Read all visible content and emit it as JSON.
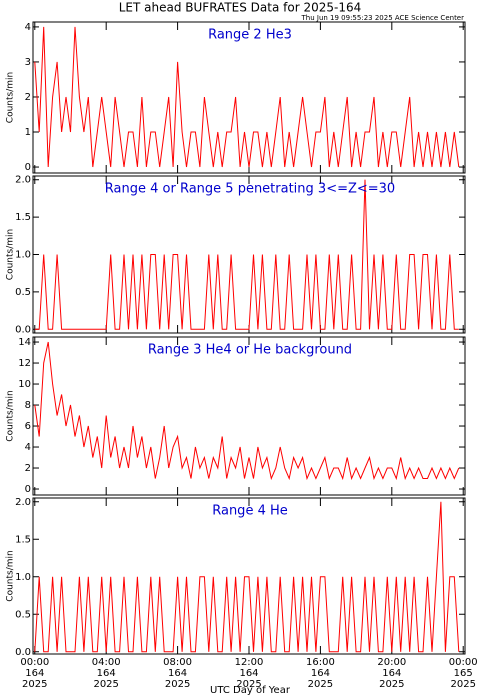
{
  "title": "LET ahead BUFRATES Data for 2025-164",
  "subtitle": "Thu Jun 19 09:55:23 2025 ACE Science Center",
  "x_label": "UTC Day of Year",
  "chart_data": [
    {
      "type": "line",
      "title": "Range 2 He3",
      "y_label": "Counts/min",
      "color": "#ff0000",
      "xlim": [
        -0.1,
        24.1
      ],
      "ylim": [
        -0.17,
        4.14
      ],
      "yticks": [
        0,
        1,
        2,
        3,
        4
      ],
      "x": [
        0,
        0.25,
        0.5,
        0.75,
        1,
        1.25,
        1.5,
        1.75,
        2,
        2.25,
        2.5,
        2.75,
        3,
        3.25,
        3.5,
        3.75,
        4,
        4.25,
        4.5,
        4.75,
        5,
        5.25,
        5.5,
        5.75,
        6,
        6.25,
        6.5,
        6.75,
        7,
        7.25,
        7.5,
        7.75,
        8,
        8.25,
        8.5,
        8.75,
        9,
        9.25,
        9.5,
        9.75,
        10,
        10.25,
        10.5,
        10.75,
        11,
        11.25,
        11.5,
        11.75,
        12,
        12.25,
        12.5,
        12.75,
        13,
        13.25,
        13.5,
        13.75,
        14,
        14.25,
        14.5,
        14.75,
        15,
        15.25,
        15.5,
        15.75,
        16,
        16.25,
        16.5,
        16.75,
        17,
        17.25,
        17.5,
        17.75,
        18,
        18.25,
        18.5,
        18.75,
        19,
        19.25,
        19.5,
        19.75,
        20,
        20.25,
        20.5,
        20.75,
        21,
        21.25,
        21.5,
        21.75,
        22,
        22.25,
        22.5,
        22.75,
        23,
        23.25,
        23.5,
        23.75
      ],
      "values": [
        3,
        1,
        4,
        0,
        2,
        3,
        1,
        2,
        1,
        4,
        2,
        1,
        2,
        0,
        1,
        2,
        1,
        0,
        2,
        1,
        0,
        1,
        1,
        0,
        2,
        0,
        1,
        1,
        0,
        1,
        2,
        0,
        3,
        1,
        0,
        1,
        1,
        0,
        2,
        1,
        0,
        1,
        0,
        1,
        1,
        2,
        0,
        1,
        0,
        1,
        1,
        0,
        1,
        0,
        1,
        2,
        0,
        1,
        0,
        1,
        2,
        1,
        0,
        1,
        1,
        2,
        0,
        1,
        0,
        1,
        2,
        0,
        1,
        0,
        1,
        1,
        2,
        0,
        1,
        0,
        1,
        1,
        0,
        1,
        2,
        0,
        1,
        0,
        1,
        0,
        1,
        0,
        1,
        0,
        1,
        0
      ]
    },
    {
      "type": "line",
      "title": "Range 4 or Range 5 penetrating 3<=Z<=30",
      "y_label": "Counts/min",
      "color": "#ff0000",
      "xlim": [
        -0.1,
        24.1
      ],
      "ylim": [
        -0.05,
        2.05
      ],
      "yticks": [
        {
          "value": 0,
          "label": "0.0"
        },
        {
          "value": 0.5,
          "label": "0.5"
        },
        {
          "value": 1,
          "label": "1.0"
        },
        {
          "value": 1.5,
          "label": "1.5"
        },
        {
          "value": 2,
          "label": "2.0"
        }
      ],
      "x": [
        0,
        0.25,
        0.5,
        0.75,
        1,
        1.25,
        1.5,
        1.75,
        2,
        2.25,
        2.5,
        2.75,
        3,
        3.25,
        3.5,
        3.75,
        4,
        4.25,
        4.5,
        4.75,
        5,
        5.25,
        5.5,
        5.75,
        6,
        6.25,
        6.5,
        6.75,
        7,
        7.25,
        7.5,
        7.75,
        8,
        8.25,
        8.5,
        8.75,
        9,
        9.25,
        9.5,
        9.75,
        10,
        10.25,
        10.5,
        10.75,
        11,
        11.25,
        11.5,
        11.75,
        12,
        12.25,
        12.5,
        12.75,
        13,
        13.25,
        13.5,
        13.75,
        14,
        14.25,
        14.5,
        14.75,
        15,
        15.25,
        15.5,
        15.75,
        16,
        16.25,
        16.5,
        16.75,
        17,
        17.25,
        17.5,
        17.75,
        18,
        18.25,
        18.5,
        18.75,
        19,
        19.25,
        19.5,
        19.75,
        20,
        20.25,
        20.5,
        20.75,
        21,
        21.25,
        21.5,
        21.75,
        22,
        22.25,
        22.5,
        22.75,
        23,
        23.25,
        23.5,
        23.75
      ],
      "values": [
        0,
        0,
        1,
        0,
        0,
        1,
        0,
        0,
        0,
        0,
        0,
        0,
        0,
        0,
        0,
        0,
        0,
        1,
        0,
        0,
        1,
        0,
        1,
        0,
        1,
        0,
        1,
        1,
        0,
        1,
        0,
        1,
        1,
        0,
        1,
        0,
        0,
        0,
        0,
        1,
        0,
        1,
        0,
        0,
        1,
        0,
        0,
        0,
        0,
        1,
        0,
        1,
        0,
        0,
        1,
        0,
        0,
        1,
        0,
        0,
        0,
        1,
        0,
        1,
        0,
        0,
        1,
        0,
        1,
        0,
        0,
        1,
        0,
        0,
        2,
        0,
        1,
        0,
        1,
        0,
        0,
        1,
        0,
        0,
        1,
        1,
        0,
        1,
        1,
        0,
        1,
        0,
        0,
        1,
        0,
        0
      ]
    },
    {
      "type": "line",
      "title": "Range 3 He4 or He background",
      "y_label": "Counts/min",
      "color": "#ff0000",
      "xlim": [
        -0.1,
        24.1
      ],
      "ylim": [
        -0.57,
        14.48
      ],
      "yticks": [
        0,
        2,
        4,
        6,
        8,
        10,
        12,
        14
      ],
      "x": [
        0,
        0.25,
        0.5,
        0.75,
        1,
        1.25,
        1.5,
        1.75,
        2,
        2.25,
        2.5,
        2.75,
        3,
        3.25,
        3.5,
        3.75,
        4,
        4.25,
        4.5,
        4.75,
        5,
        5.25,
        5.5,
        5.75,
        6,
        6.25,
        6.5,
        6.75,
        7,
        7.25,
        7.5,
        7.75,
        8,
        8.25,
        8.5,
        8.75,
        9,
        9.25,
        9.5,
        9.75,
        10,
        10.25,
        10.5,
        10.75,
        11,
        11.25,
        11.5,
        11.75,
        12,
        12.25,
        12.5,
        12.75,
        13,
        13.25,
        13.5,
        13.75,
        14,
        14.25,
        14.5,
        14.75,
        15,
        15.25,
        15.5,
        15.75,
        16,
        16.25,
        16.5,
        16.75,
        17,
        17.25,
        17.5,
        17.75,
        18,
        18.25,
        18.5,
        18.75,
        19,
        19.25,
        19.5,
        19.75,
        20,
        20.25,
        20.5,
        20.75,
        21,
        21.25,
        21.5,
        21.75,
        22,
        22.25,
        22.5,
        22.75,
        23,
        23.25,
        23.5,
        23.75
      ],
      "values": [
        8,
        5,
        12,
        14,
        10,
        7,
        9,
        6,
        8,
        5,
        7,
        4,
        6,
        3,
        5,
        2,
        7,
        3,
        5,
        2,
        4,
        2,
        6,
        3,
        5,
        2,
        4,
        1,
        3,
        6,
        2,
        4,
        5,
        2,
        3,
        1,
        4,
        2,
        3,
        1,
        3,
        2,
        5,
        1,
        3,
        2,
        4,
        1,
        3,
        1,
        4,
        2,
        3,
        1,
        2,
        4,
        2,
        1,
        3,
        2,
        3,
        1,
        2,
        1,
        2,
        3,
        1,
        2,
        2,
        1,
        3,
        1,
        2,
        1,
        2,
        3,
        1,
        2,
        1,
        2,
        2,
        1,
        3,
        1,
        2,
        1,
        2,
        1,
        1,
        2,
        1,
        2,
        1,
        2,
        1,
        2
      ]
    },
    {
      "type": "line",
      "title": "Range 4 He",
      "y_label": "Counts/min",
      "color": "#ff0000",
      "xlim": [
        -0.1,
        24.1
      ],
      "ylim": [
        -0.03,
        2.05
      ],
      "yticks": [
        {
          "value": 0,
          "label": "0.0"
        },
        {
          "value": 0.5,
          "label": "0.5"
        },
        {
          "value": 1,
          "label": "1.0"
        },
        {
          "value": 1.5,
          "label": "1.5"
        },
        {
          "value": 2,
          "label": "2.0"
        }
      ],
      "xticks": [
        {
          "value": 0,
          "label": "00:00\n164\n2025"
        },
        {
          "value": 4,
          "label": "04:00\n164\n2025"
        },
        {
          "value": 8,
          "label": "08:00\n164\n2025"
        },
        {
          "value": 12,
          "label": "12:00\n164\n2025"
        },
        {
          "value": 16,
          "label": "16:00\n164\n2025"
        },
        {
          "value": 20,
          "label": "20:00\n164\n2025"
        },
        {
          "value": 24,
          "label": "00:00\n165\n2025"
        }
      ],
      "x": [
        0,
        0.25,
        0.5,
        0.75,
        1,
        1.25,
        1.5,
        1.75,
        2,
        2.25,
        2.5,
        2.75,
        3,
        3.25,
        3.5,
        3.75,
        4,
        4.25,
        4.5,
        4.75,
        5,
        5.25,
        5.5,
        5.75,
        6,
        6.25,
        6.5,
        6.75,
        7,
        7.25,
        7.5,
        7.75,
        8,
        8.25,
        8.5,
        8.75,
        9,
        9.25,
        9.5,
        9.75,
        10,
        10.25,
        10.5,
        10.75,
        11,
        11.25,
        11.5,
        11.75,
        12,
        12.25,
        12.5,
        12.75,
        13,
        13.25,
        13.5,
        13.75,
        14,
        14.25,
        14.5,
        14.75,
        15,
        15.25,
        15.5,
        15.75,
        16,
        16.25,
        16.5,
        16.75,
        17,
        17.25,
        17.5,
        17.75,
        18,
        18.25,
        18.5,
        18.75,
        19,
        19.25,
        19.5,
        19.75,
        20,
        20.25,
        20.5,
        20.75,
        21,
        21.25,
        21.5,
        21.75,
        22,
        22.25,
        22.5,
        22.75,
        23,
        23.25,
        23.5,
        23.75
      ],
      "values": [
        0,
        1,
        0,
        0,
        1,
        0,
        1,
        0,
        0,
        0,
        1,
        0,
        1,
        0,
        0,
        1,
        0,
        1,
        0,
        0,
        1,
        0,
        0,
        1,
        0,
        0,
        1,
        0,
        1,
        0,
        0,
        0,
        1,
        0,
        1,
        0,
        0,
        1,
        1,
        0,
        1,
        0,
        0,
        1,
        0,
        1,
        0,
        1,
        1,
        0,
        1,
        0,
        1,
        0,
        0,
        1,
        0,
        0,
        1,
        0,
        1,
        0,
        1,
        0,
        1,
        1,
        0,
        0,
        0,
        1,
        0,
        1,
        0,
        0,
        1,
        0,
        1,
        0,
        0,
        1,
        0,
        1,
        0,
        1,
        0,
        1,
        0,
        0,
        1,
        0,
        1,
        2,
        0,
        1,
        1,
        0
      ]
    }
  ]
}
